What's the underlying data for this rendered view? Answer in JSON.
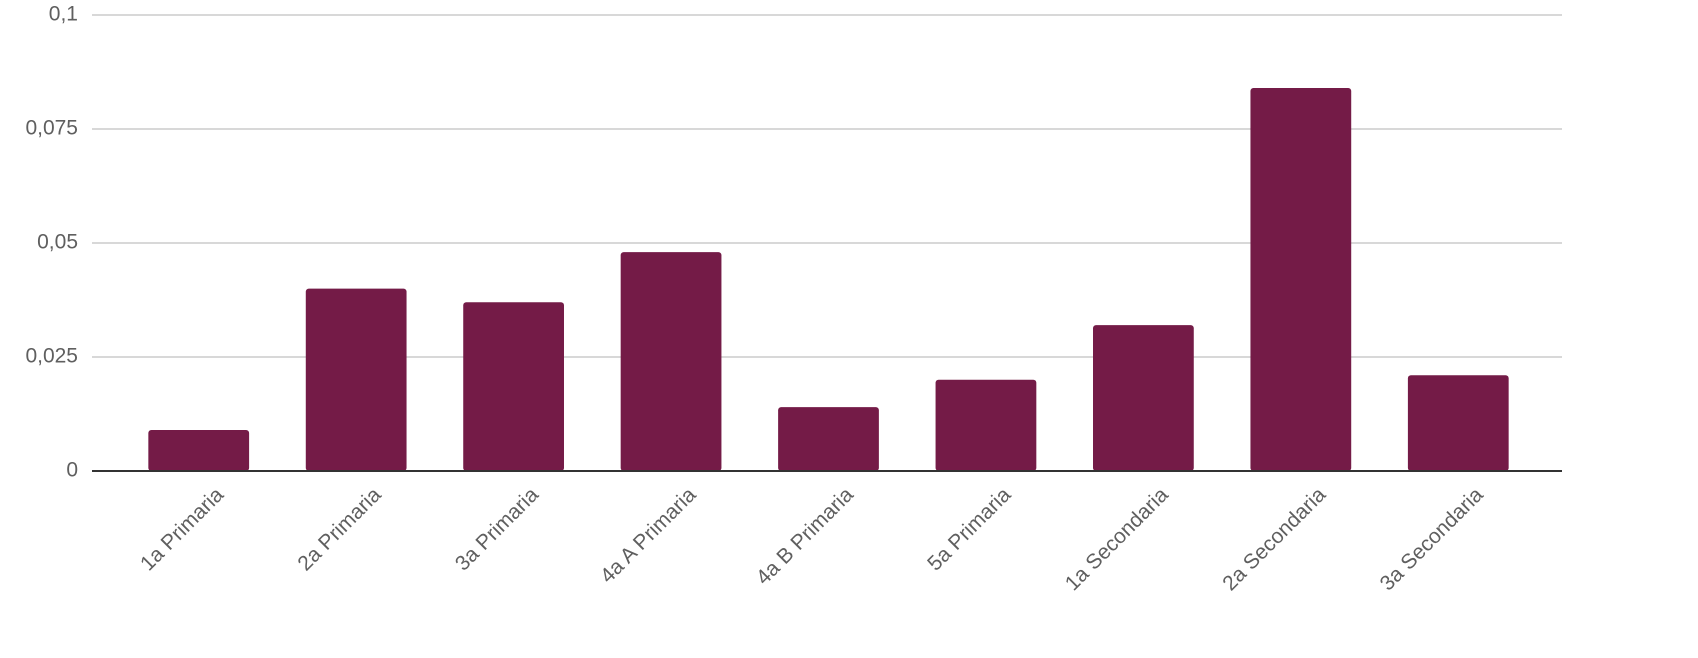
{
  "chart_data": {
    "type": "bar",
    "categories": [
      "1a Primaria",
      "2a Primaria",
      "3a Primaria",
      "4a A Primaria",
      "4a B Primaria",
      "5a Primaria",
      "1a Secondaria",
      "2a Secondaria",
      "3a Secondaria"
    ],
    "values": [
      0.009,
      0.04,
      0.037,
      0.048,
      0.014,
      0.02,
      0.032,
      0.084,
      0.021
    ],
    "color": "#741b47",
    "ylim": [
      0,
      0.1
    ],
    "yticks": [
      0,
      {
        "value": 0.025,
        "label": "0,025"
      },
      {
        "value": 0.05,
        "label": "0,05"
      },
      {
        "value": 0.075,
        "label": "0,075"
      },
      {
        "value": 0.1,
        "label": "0,1"
      }
    ],
    "grid": true
  }
}
